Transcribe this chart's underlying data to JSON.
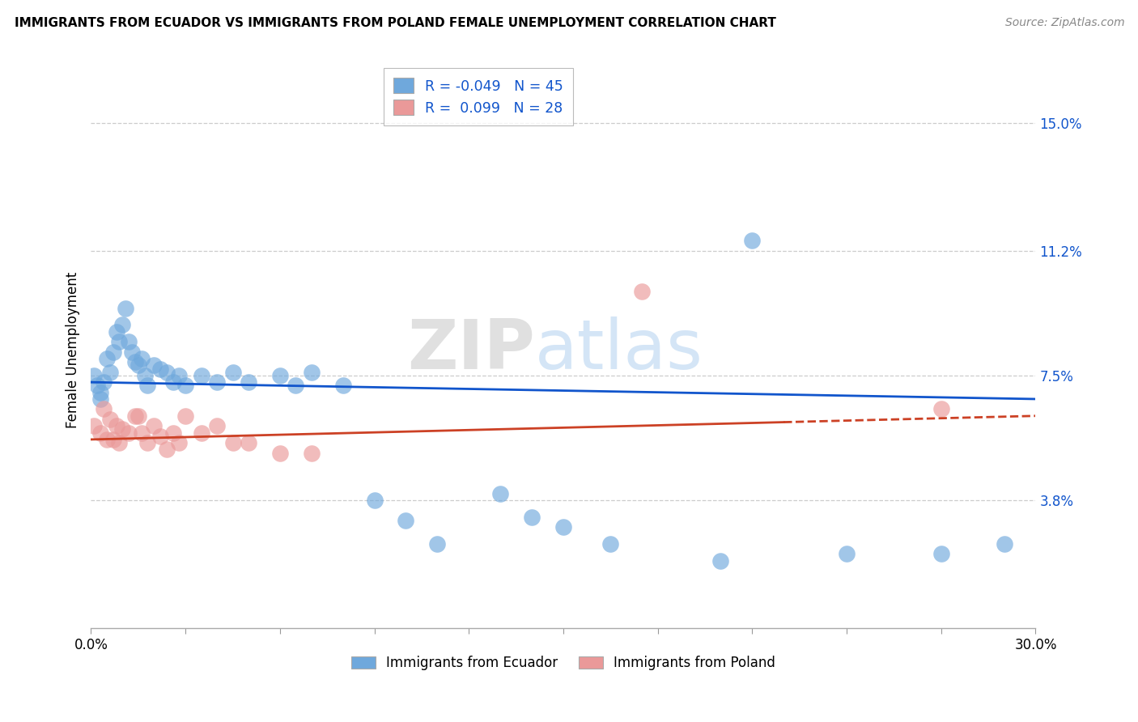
{
  "title": "IMMIGRANTS FROM ECUADOR VS IMMIGRANTS FROM POLAND FEMALE UNEMPLOYMENT CORRELATION CHART",
  "source": "Source: ZipAtlas.com",
  "ylabel": "Female Unemployment",
  "xlim": [
    0.0,
    0.3
  ],
  "ylim": [
    0.0,
    0.165
  ],
  "yticks": [
    0.038,
    0.075,
    0.112,
    0.15
  ],
  "ytick_labels": [
    "3.8%",
    "7.5%",
    "11.2%",
    "15.0%"
  ],
  "xticks": [
    0.0,
    0.05,
    0.1,
    0.15,
    0.2,
    0.25,
    0.3
  ],
  "xtick_labels": [
    "0.0%",
    "",
    "",
    "",
    "",
    "",
    "30.0%"
  ],
  "ecuador_color": "#6fa8dc",
  "poland_color": "#ea9999",
  "ecuador_line_color": "#1155cc",
  "poland_line_color": "#cc4125",
  "legend_r_ecuador": "-0.049",
  "legend_n_ecuador": "45",
  "legend_r_poland": "0.099",
  "legend_n_poland": "28",
  "watermark_zip": "ZIP",
  "watermark_atlas": "atlas",
  "ecuador_points": [
    [
      0.001,
      0.075
    ],
    [
      0.002,
      0.072
    ],
    [
      0.003,
      0.07
    ],
    [
      0.003,
      0.068
    ],
    [
      0.004,
      0.073
    ],
    [
      0.005,
      0.08
    ],
    [
      0.006,
      0.076
    ],
    [
      0.007,
      0.082
    ],
    [
      0.008,
      0.088
    ],
    [
      0.009,
      0.085
    ],
    [
      0.01,
      0.09
    ],
    [
      0.011,
      0.095
    ],
    [
      0.012,
      0.085
    ],
    [
      0.013,
      0.082
    ],
    [
      0.014,
      0.079
    ],
    [
      0.015,
      0.078
    ],
    [
      0.016,
      0.08
    ],
    [
      0.017,
      0.075
    ],
    [
      0.018,
      0.072
    ],
    [
      0.02,
      0.078
    ],
    [
      0.022,
      0.077
    ],
    [
      0.024,
      0.076
    ],
    [
      0.026,
      0.073
    ],
    [
      0.028,
      0.075
    ],
    [
      0.03,
      0.072
    ],
    [
      0.035,
      0.075
    ],
    [
      0.04,
      0.073
    ],
    [
      0.045,
      0.076
    ],
    [
      0.05,
      0.073
    ],
    [
      0.06,
      0.075
    ],
    [
      0.065,
      0.072
    ],
    [
      0.07,
      0.076
    ],
    [
      0.08,
      0.072
    ],
    [
      0.09,
      0.038
    ],
    [
      0.1,
      0.032
    ],
    [
      0.11,
      0.025
    ],
    [
      0.13,
      0.04
    ],
    [
      0.14,
      0.033
    ],
    [
      0.15,
      0.03
    ],
    [
      0.165,
      0.025
    ],
    [
      0.2,
      0.02
    ],
    [
      0.21,
      0.115
    ],
    [
      0.24,
      0.022
    ],
    [
      0.27,
      0.022
    ],
    [
      0.29,
      0.025
    ]
  ],
  "poland_points": [
    [
      0.001,
      0.06
    ],
    [
      0.003,
      0.058
    ],
    [
      0.004,
      0.065
    ],
    [
      0.005,
      0.056
    ],
    [
      0.006,
      0.062
    ],
    [
      0.007,
      0.056
    ],
    [
      0.008,
      0.06
    ],
    [
      0.009,
      0.055
    ],
    [
      0.01,
      0.059
    ],
    [
      0.012,
      0.058
    ],
    [
      0.014,
      0.063
    ],
    [
      0.015,
      0.063
    ],
    [
      0.016,
      0.058
    ],
    [
      0.018,
      0.055
    ],
    [
      0.02,
      0.06
    ],
    [
      0.022,
      0.057
    ],
    [
      0.024,
      0.053
    ],
    [
      0.026,
      0.058
    ],
    [
      0.028,
      0.055
    ],
    [
      0.03,
      0.063
    ],
    [
      0.035,
      0.058
    ],
    [
      0.04,
      0.06
    ],
    [
      0.045,
      0.055
    ],
    [
      0.05,
      0.055
    ],
    [
      0.06,
      0.052
    ],
    [
      0.07,
      0.052
    ],
    [
      0.175,
      0.1
    ],
    [
      0.27,
      0.065
    ]
  ]
}
